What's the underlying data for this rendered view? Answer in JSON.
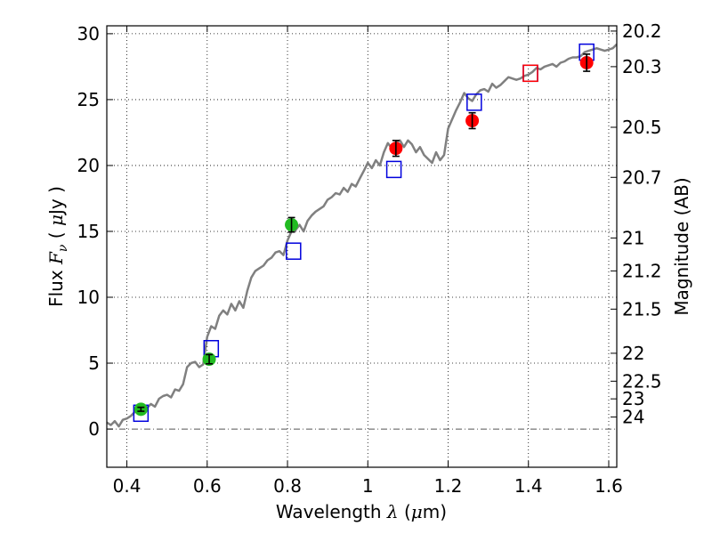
{
  "chart_data": {
    "type": "scatter",
    "xlabel": {
      "text": "Wavelength",
      "symbol": "λ",
      "unit_open": "(",
      "unit_mu": "μ",
      "unit_rest": "m)"
    },
    "ylabel": {
      "text": "Flux",
      "symbol": "F",
      "subscript": "ν",
      "unit_open": "(",
      "unit_mu": "μ",
      "unit_rest": "Jy )"
    },
    "y2label": "Magnitude (AB)",
    "xlim": [
      0.35,
      1.62
    ],
    "ylim": [
      -2.9,
      30.6
    ],
    "grid": true,
    "x_ticks": [
      {
        "value": 0.4,
        "label": "0.4"
      },
      {
        "value": 0.6,
        "label": "0.6"
      },
      {
        "value": 0.8,
        "label": "0.8"
      },
      {
        "value": 1.0,
        "label": "1"
      },
      {
        "value": 1.2,
        "label": "1.2"
      },
      {
        "value": 1.4,
        "label": "1.4"
      },
      {
        "value": 1.6,
        "label": "1.6"
      }
    ],
    "y_ticks": [
      {
        "value": 0,
        "label": "0"
      },
      {
        "value": 5,
        "label": "5"
      },
      {
        "value": 10,
        "label": "10"
      },
      {
        "value": 15,
        "label": "15"
      },
      {
        "value": 20,
        "label": "20"
      },
      {
        "value": 25,
        "label": "25"
      },
      {
        "value": 30,
        "label": "30"
      }
    ],
    "mag_ticks": [
      {
        "label": "20.2",
        "flux": 30.2
      },
      {
        "label": "20.3",
        "flux": 27.5
      },
      {
        "label": "20.5",
        "flux": 22.9
      },
      {
        "label": "20.7",
        "flux": 19.1
      },
      {
        "label": "21",
        "flux": 14.5
      },
      {
        "label": "21.2",
        "flux": 12.0
      },
      {
        "label": "21.5",
        "flux": 9.1
      },
      {
        "label": "22",
        "flux": 5.75
      },
      {
        "label": "22.5",
        "flux": 3.63
      },
      {
        "label": "23",
        "flux": 2.29
      },
      {
        "label": "24",
        "flux": 0.91
      }
    ],
    "model_spectrum": {
      "color": "#808080",
      "x": [
        0.35,
        0.36,
        0.37,
        0.38,
        0.39,
        0.4,
        0.41,
        0.42,
        0.43,
        0.44,
        0.45,
        0.46,
        0.47,
        0.48,
        0.49,
        0.5,
        0.51,
        0.52,
        0.53,
        0.54,
        0.55,
        0.56,
        0.57,
        0.58,
        0.59,
        0.6,
        0.61,
        0.62,
        0.63,
        0.64,
        0.65,
        0.66,
        0.67,
        0.68,
        0.69,
        0.7,
        0.71,
        0.72,
        0.73,
        0.74,
        0.75,
        0.76,
        0.77,
        0.78,
        0.79,
        0.8,
        0.81,
        0.82,
        0.83,
        0.84,
        0.85,
        0.86,
        0.87,
        0.88,
        0.89,
        0.9,
        0.91,
        0.92,
        0.93,
        0.94,
        0.95,
        0.96,
        0.97,
        0.98,
        0.99,
        1.0,
        1.01,
        1.02,
        1.03,
        1.04,
        1.05,
        1.06,
        1.07,
        1.08,
        1.09,
        1.1,
        1.11,
        1.12,
        1.13,
        1.14,
        1.15,
        1.16,
        1.17,
        1.18,
        1.19,
        1.2,
        1.21,
        1.22,
        1.23,
        1.24,
        1.25,
        1.26,
        1.27,
        1.28,
        1.29,
        1.3,
        1.31,
        1.32,
        1.33,
        1.34,
        1.35,
        1.36,
        1.37,
        1.38,
        1.39,
        1.4,
        1.41,
        1.42,
        1.43,
        1.44,
        1.45,
        1.46,
        1.47,
        1.48,
        1.49,
        1.5,
        1.51,
        1.52,
        1.53,
        1.54,
        1.55,
        1.56,
        1.57,
        1.58,
        1.59,
        1.6,
        1.61,
        1.62
      ],
      "y": [
        0.5,
        0.3,
        0.6,
        0.2,
        0.7,
        0.8,
        1.0,
        1.3,
        1.5,
        1.2,
        1.6,
        1.9,
        1.7,
        2.3,
        2.5,
        2.6,
        2.4,
        3.0,
        2.9,
        3.4,
        4.7,
        5.0,
        5.1,
        4.7,
        4.9,
        7.0,
        7.8,
        7.6,
        8.6,
        9.0,
        8.7,
        9.5,
        9.0,
        9.7,
        9.2,
        10.5,
        11.5,
        12.0,
        12.2,
        12.4,
        12.8,
        13.0,
        13.4,
        13.5,
        13.2,
        14.3,
        15.0,
        15.1,
        15.5,
        15.0,
        15.8,
        16.2,
        16.5,
        16.7,
        16.9,
        17.4,
        17.6,
        17.9,
        17.8,
        18.3,
        18.0,
        18.6,
        18.4,
        19.0,
        19.6,
        20.2,
        19.8,
        20.4,
        20.0,
        21.0,
        21.7,
        21.3,
        21.8,
        21.9,
        21.4,
        21.9,
        21.6,
        21.0,
        21.4,
        20.8,
        20.5,
        20.2,
        21.0,
        20.4,
        20.8,
        22.8,
        23.5,
        24.2,
        24.8,
        25.5,
        25.1,
        24.9,
        25.4,
        25.7,
        25.8,
        25.6,
        26.2,
        25.9,
        26.1,
        26.4,
        26.7,
        26.6,
        26.5,
        26.6,
        26.8,
        26.9,
        27.1,
        27.4,
        27.3,
        27.5,
        27.6,
        27.7,
        27.5,
        27.8,
        27.9,
        28.1,
        28.2,
        28.2,
        28.3,
        28.6,
        28.7,
        28.8,
        28.9,
        28.8,
        28.7,
        28.8,
        28.9,
        29.2
      ]
    },
    "series": [
      {
        "marker": "circle",
        "color": "#22bb22",
        "x": [
          0.435,
          0.605,
          0.81
        ],
        "y": [
          1.5,
          5.3,
          15.5
        ],
        "err": [
          0.15,
          0.35,
          0.55
        ]
      },
      {
        "marker": "circle",
        "color": "#ff0000",
        "x": [
          1.07,
          1.26,
          1.545
        ],
        "y": [
          21.3,
          23.4,
          27.8
        ],
        "err": [
          0.6,
          0.6,
          0.65
        ]
      },
      {
        "marker": "square-open",
        "color": "#0000dd",
        "x": [
          0.435,
          0.61,
          0.815,
          1.065,
          1.265,
          1.405,
          1.545
        ],
        "y": [
          1.2,
          6.1,
          13.5,
          19.7,
          24.8,
          27.0,
          28.6
        ]
      },
      {
        "marker": "square-open",
        "color": "#ff0000",
        "x": [
          1.405
        ],
        "y": [
          27.0
        ]
      }
    ],
    "colors": {
      "gridline": "#000000",
      "zero_line": "#555555"
    }
  }
}
